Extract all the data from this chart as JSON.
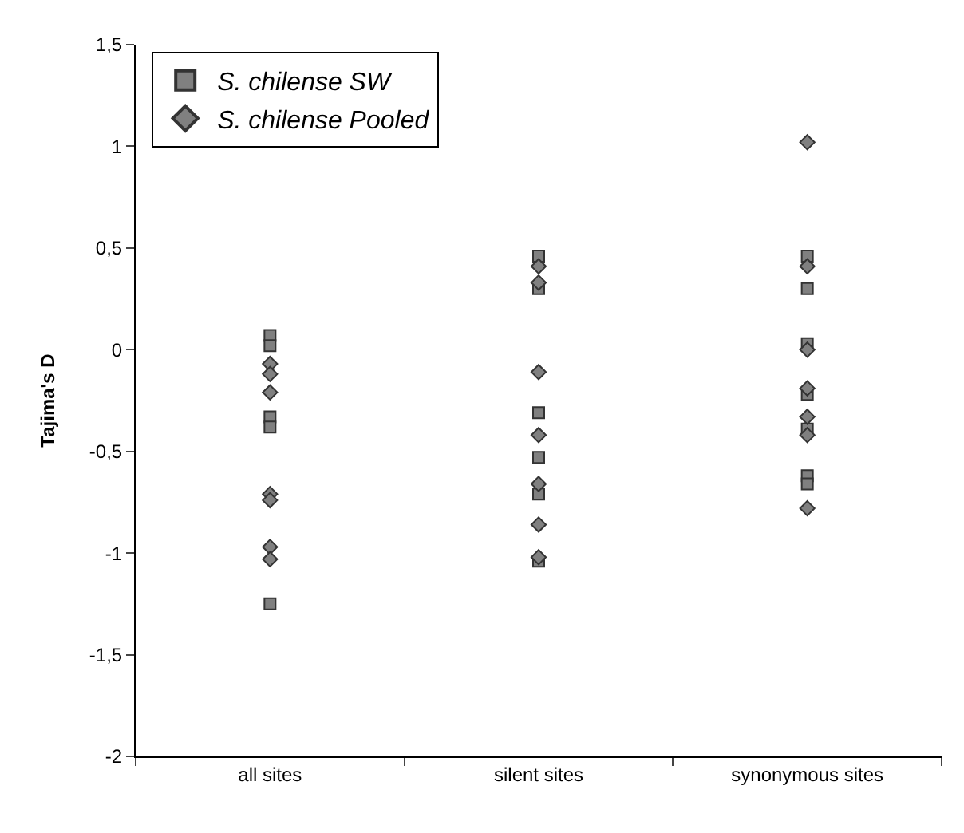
{
  "chart_data": {
    "type": "scatter",
    "ylabel": "Tajima's D",
    "categories": [
      "all sites",
      "silent sites",
      "synonymous sites"
    ],
    "ylim": [
      -2,
      1.5
    ],
    "yticks": [
      {
        "value": -2,
        "label": "-2"
      },
      {
        "value": -1.5,
        "label": "-1,5"
      },
      {
        "value": -1,
        "label": "-1"
      },
      {
        "value": -0.5,
        "label": "-0,5"
      },
      {
        "value": 0,
        "label": "0"
      },
      {
        "value": 0.5,
        "label": "0,5"
      },
      {
        "value": 1,
        "label": "1"
      },
      {
        "value": 1.5,
        "label": "1,5"
      }
    ],
    "grid": false,
    "legend": "top left",
    "series": [
      {
        "name": "S. chilense SW",
        "color": "#808080",
        "marker": "square",
        "x": [
          "all sites",
          "all sites",
          "all sites",
          "all sites",
          "all sites",
          "silent sites",
          "silent sites",
          "silent sites",
          "silent sites",
          "silent sites",
          "silent sites",
          "synonymous sites",
          "synonymous sites",
          "synonymous sites",
          "synonymous sites",
          "synonymous sites",
          "synonymous sites",
          "synonymous sites"
        ],
        "values": [
          0.07,
          0.02,
          -0.33,
          -0.38,
          -1.25,
          0.46,
          0.3,
          -0.31,
          -0.53,
          -0.71,
          -1.04,
          0.46,
          0.3,
          0.03,
          -0.22,
          -0.39,
          -0.62,
          -0.66
        ]
      },
      {
        "name": "S. chilense Pooled",
        "color": "#808080",
        "marker": "diamond",
        "x": [
          "all sites",
          "all sites",
          "all sites",
          "all sites",
          "all sites",
          "all sites",
          "all sites",
          "silent sites",
          "silent sites",
          "silent sites",
          "silent sites",
          "silent sites",
          "silent sites",
          "silent sites",
          "synonymous sites",
          "synonymous sites",
          "synonymous sites",
          "synonymous sites",
          "synonymous sites",
          "synonymous sites",
          "synonymous sites"
        ],
        "values": [
          -0.07,
          -0.12,
          -0.21,
          -0.71,
          -0.74,
          -0.97,
          -1.03,
          0.41,
          0.33,
          -0.11,
          -0.42,
          -0.66,
          -0.86,
          -1.02,
          1.02,
          0.41,
          0,
          -0.19,
          -0.33,
          -0.42,
          -0.78
        ]
      }
    ]
  }
}
